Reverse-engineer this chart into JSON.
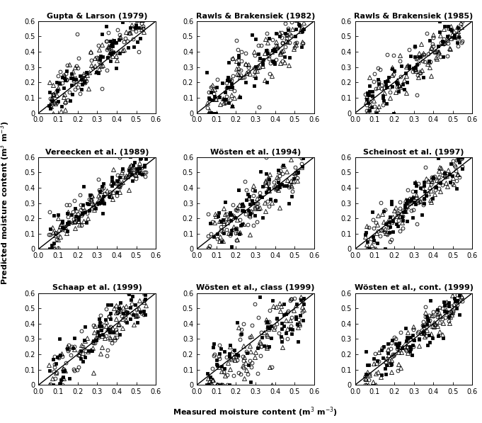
{
  "titles": [
    "Gupta & Larson (1979)",
    "Rawls & Brakensiek (1982)",
    "Rawls & Brakensiek (1985)",
    "Vereecken et al. (1989)",
    "Wösten et al. (1994)",
    "Scheinost et al. (1997)",
    "Schaap et al. (1999)",
    "Wösten et al., class (1999)",
    "Wösten et al., cont. (1999)"
  ],
  "xlabel": "Measured moisture content (m$^3$ m$^{-3}$)",
  "ylabel": "Predicted moisture content (m$^3$ m$^{-3}$)",
  "xlim": [
    0.0,
    0.6
  ],
  "ylim": [
    0.0,
    0.6
  ],
  "xticks": [
    0.0,
    0.1,
    0.2,
    0.3,
    0.4,
    0.5,
    0.6
  ],
  "yticks": [
    0.0,
    0.1,
    0.2,
    0.3,
    0.4,
    0.5,
    0.6
  ],
  "xticklabels": [
    "0.0",
    "0.1",
    "0.2",
    "0.3",
    "0.4",
    "0.5",
    "0.6"
  ],
  "yticklabels": [
    "0",
    "0.1",
    "0.2",
    "0.3",
    "0.4",
    "0.5",
    "0.6"
  ],
  "background": "#ffffff",
  "seed": 42,
  "n_points_per_series": 65,
  "panel_configs": [
    [
      0.05,
      0.08,
      0.03,
      0.07,
      0.02,
      0.065
    ],
    [
      0.04,
      0.09,
      0.02,
      0.085,
      0.01,
      0.075
    ],
    [
      0.02,
      0.07,
      0.01,
      0.065,
      0.0,
      0.06
    ],
    [
      0.03,
      0.06,
      0.02,
      0.055,
      0.01,
      0.05
    ],
    [
      0.02,
      0.085,
      0.01,
      0.075,
      0.0,
      0.07
    ],
    [
      0.01,
      0.07,
      0.005,
      0.065,
      0.0,
      0.06
    ],
    [
      0.03,
      0.08,
      0.02,
      0.07,
      0.01,
      0.065
    ],
    [
      -0.05,
      0.12,
      -0.04,
      0.1,
      -0.06,
      0.09
    ],
    [
      0.02,
      0.07,
      0.01,
      0.065,
      0.0,
      0.06
    ]
  ],
  "marker_specs": [
    {
      "marker": "o",
      "facecolor": "none",
      "edgecolor": "black",
      "markersize": 3.5,
      "linewidth": 0.6
    },
    {
      "marker": "s",
      "facecolor": "black",
      "edgecolor": "black",
      "markersize": 3.5,
      "linewidth": 0.6
    },
    {
      "marker": "^",
      "facecolor": "none",
      "edgecolor": "black",
      "markersize": 4.0,
      "linewidth": 0.6
    }
  ]
}
